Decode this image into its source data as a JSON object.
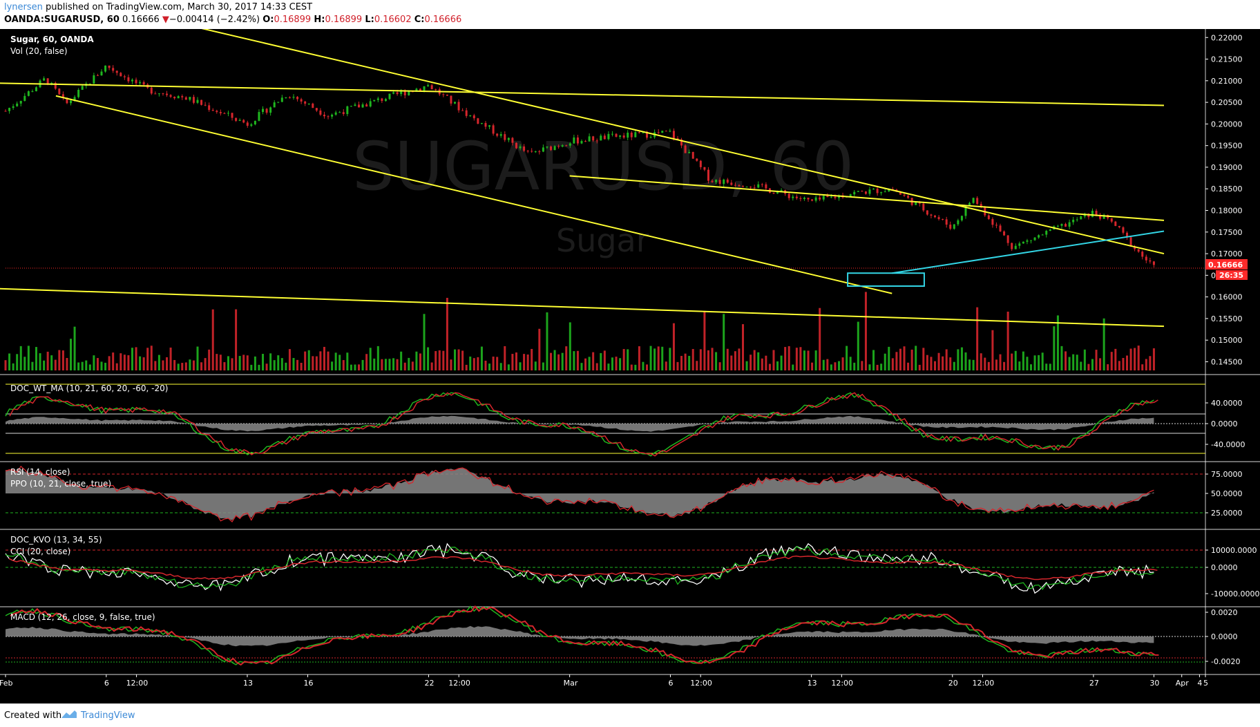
{
  "header": {
    "user": "lynersen",
    "published": " published on TradingView.com, March 30, 2017 14:33 CEST",
    "symbol": "OANDA:SUGARUSD, 60",
    "last": "0.16666",
    "change_arrow": "▼",
    "change": "−0.00414 (−2.42%)",
    "o_label": "O:",
    "o": "0.16899",
    "h_label": "H:",
    "h": "0.16899",
    "l_label": "L:",
    "l": "0.16602",
    "c_label": "C:",
    "c": "0.16666"
  },
  "footer": {
    "created": "Created with",
    "brand": "TradingView"
  },
  "main_pane": {
    "title": "Sugar, 60, OANDA",
    "vol": "Vol (20, false)",
    "watermark": "SUGARUSD, 60",
    "watermark_sub": "Sugar",
    "price_tag": "0.16666",
    "countdown": "26:35",
    "axis": [
      "0.22000",
      "0.21500",
      "0.21000",
      "0.20500",
      "0.20000",
      "0.19500",
      "0.19000",
      "0.18500",
      "0.18000",
      "0.17500",
      "0.17000",
      "0.16500",
      "0.16000",
      "0.15500",
      "0.15000",
      "0.14500"
    ]
  },
  "panes": {
    "doc_wt": {
      "label": "DOC_WT_MA (10, 21, 60, 20, -60, -20)",
      "axis": [
        "40.0000",
        "0.0000",
        "-40.0000"
      ]
    },
    "rsi": {
      "label": "RSI (14, close)",
      "label2": "PPO (10, 21, close, true)",
      "axis": [
        "75.0000",
        "50.0000",
        "25.0000"
      ]
    },
    "kvo": {
      "label": "DOC_KVO (13, 34, 55)",
      "label2": "CCI (20, close)",
      "axis": [
        "10000.0000",
        "0.0000",
        "-10000.0000"
      ]
    },
    "macd": {
      "label": "MACD (12, 26, close, 9, false, true)",
      "axis": [
        "0.0020",
        "0.0000",
        "-0.0020"
      ]
    }
  },
  "x_axis": [
    "Feb",
    "6",
    "12:00",
    "13",
    "16",
    "22",
    "12:00",
    "Mar",
    "6",
    "12:00",
    "13",
    "12:00",
    "20",
    "12:00",
    "27",
    "30",
    "Apr",
    "4",
    "5"
  ],
  "colors": {
    "up": "#1fb61f",
    "down": "#d6262c",
    "trendline": "#ffff33",
    "target": "#33d6e6",
    "price_tag": "#ff2a2a"
  },
  "chart_data": {
    "type": "candlestick",
    "symbol": "OANDA:SUGARUSD",
    "interval": "60",
    "title": "Sugar, 60, OANDA",
    "last": {
      "open": 0.16899,
      "high": 0.16899,
      "low": 0.16602,
      "close": 0.16666,
      "change": -0.00414,
      "change_pct": -2.42
    },
    "ylim": [
      0.143,
      0.221
    ],
    "close_path": [
      [
        "Feb 1",
        0.203
      ],
      [
        "Feb 3",
        0.2105
      ],
      [
        "Feb 4",
        0.2045
      ],
      [
        "Feb 6",
        0.2135
      ],
      [
        "Feb 8",
        0.208
      ],
      [
        "Feb 10",
        0.206
      ],
      [
        "Feb 13",
        0.2
      ],
      [
        "Feb 15",
        0.207
      ],
      [
        "Feb 17",
        0.202
      ],
      [
        "Feb 22",
        0.209
      ],
      [
        "Feb 24",
        0.202
      ],
      [
        "Feb 27",
        0.193
      ],
      [
        "Mar 1",
        0.196
      ],
      [
        "Mar 3",
        0.197
      ],
      [
        "Mar 6",
        0.198
      ],
      [
        "Mar 8",
        0.187
      ],
      [
        "Mar 10",
        0.186
      ],
      [
        "Mar 13",
        0.182
      ],
      [
        "Mar 15",
        0.184
      ],
      [
        "Mar 17",
        0.185
      ],
      [
        "Mar 20",
        0.176
      ],
      [
        "Mar 21",
        0.183
      ],
      [
        "Mar 23",
        0.1715
      ],
      [
        "Mar 27",
        0.1795
      ],
      [
        "Mar 28",
        0.177
      ],
      [
        "Mar 29",
        0.1715
      ],
      [
        "Mar 30",
        0.1667
      ]
    ],
    "indicators": [
      "Vol (20, false)",
      "DOC_WT_MA (10, 21, 60, 20, -60, -20)",
      "RSI (14, close)",
      "PPO (10, 21, close, true)",
      "DOC_KVO (13, 34, 55)",
      "CCI (20, close)",
      "MACD (12, 26, close, 9, false, true)"
    ]
  }
}
